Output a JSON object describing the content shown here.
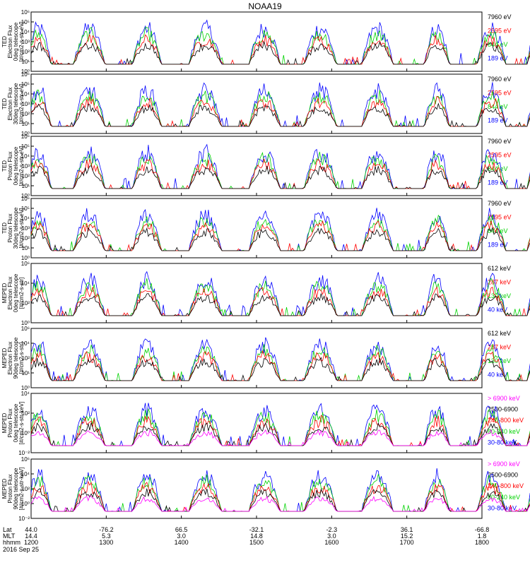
{
  "chart_data": {
    "type": "line",
    "title": "NOAA19",
    "date_label": "2016 Sep 25",
    "colors": {
      "black": "#000000",
      "red": "#ff0000",
      "green": "#00d200",
      "blue": "#0000ff",
      "magenta": "#ff00ff"
    },
    "xaxis": {
      "row_labels": [
        "Lat",
        "MLT",
        "hhmm"
      ],
      "ticks": [
        {
          "hhmm": "1200",
          "lat": "44.0",
          "mlt": "14.4"
        },
        {
          "hhmm": "1300",
          "lat": "-76.2",
          "mlt": "5.3"
        },
        {
          "hhmm": "1400",
          "lat": "66.5",
          "mlt": "3.0"
        },
        {
          "hhmm": "1500",
          "lat": "-32.1",
          "mlt": "14.8"
        },
        {
          "hhmm": "1600",
          "lat": "-2.3",
          "mlt": "3.0"
        },
        {
          "hhmm": "1700",
          "lat": "36.1",
          "mlt": "15.2"
        },
        {
          "hhmm": "1800",
          "lat": "-66.8",
          "mlt": "1.8"
        }
      ]
    },
    "panels": [
      {
        "ylabel_lines": [
          "TED",
          "Electron Flux",
          "0deg telescope",
          "[#/cm2-s-str-eV]"
        ],
        "yticks": [
          "10⁰",
          "10¹",
          "10²",
          "10³",
          "10⁴",
          "10⁵",
          "10⁶"
        ],
        "ylim_log10": [
          0,
          6
        ],
        "legend": [
          {
            "name": "7960 eV",
            "color": "black"
          },
          {
            "name": "2595 eV",
            "color": "red"
          },
          {
            "name": "844 eV",
            "color": "green"
          },
          {
            "name": "189 eV",
            "color": "blue"
          }
        ]
      },
      {
        "ylabel_lines": [
          "TED",
          "Electron Flux",
          "30deg telescope",
          "[#/cm2-s-str-eV]"
        ],
        "yticks": [
          "10⁰",
          "10¹",
          "10²",
          "10³",
          "10⁴",
          "10⁵",
          "10⁶"
        ],
        "ylim_log10": [
          0,
          6
        ],
        "legend": [
          {
            "name": "7960 eV",
            "color": "black"
          },
          {
            "name": "2595 eV",
            "color": "red"
          },
          {
            "name": "844 eV",
            "color": "green"
          },
          {
            "name": "189 eV",
            "color": "blue"
          }
        ]
      },
      {
        "ylabel_lines": [
          "TED",
          "Proton Flux",
          "0deg telescope",
          "[#/cm2-s-str-eV]"
        ],
        "yticks": [
          "10⁰",
          "10¹",
          "10²",
          "10³",
          "10⁴",
          "10⁵",
          "10⁶"
        ],
        "ylim_log10": [
          0,
          6
        ],
        "legend": [
          {
            "name": "7960 eV",
            "color": "black"
          },
          {
            "name": "2595 eV",
            "color": "red"
          },
          {
            "name": "844 eV",
            "color": "green"
          },
          {
            "name": "189 eV",
            "color": "blue"
          }
        ]
      },
      {
        "ylabel_lines": [
          "TED",
          "Proton Flux",
          "30deg telescope",
          "[#/cm2-s-str-eV]"
        ],
        "yticks": [
          "10⁰",
          "10¹",
          "10²",
          "10³",
          "10⁴",
          "10⁵",
          "10⁶"
        ],
        "ylim_log10": [
          0,
          6
        ],
        "legend": [
          {
            "name": "7960 eV",
            "color": "black"
          },
          {
            "name": "2595 eV",
            "color": "red"
          },
          {
            "name": "844 eV",
            "color": "green"
          },
          {
            "name": "189 eV",
            "color": "blue"
          }
        ]
      },
      {
        "ylabel_lines": [
          "MEPED",
          "Electron Flux",
          "0deg telescope",
          "[#/cm2-s-str]"
        ],
        "yticks": [
          "10⁰",
          "10²",
          "10⁴",
          "10⁶"
        ],
        "ylim_log10": [
          0,
          6
        ],
        "legend": [
          {
            "name": "612 keV",
            "color": "black"
          },
          {
            "name": "287 keV",
            "color": "red"
          },
          {
            "name": "130 keV",
            "color": "green"
          },
          {
            "name": "40 keV",
            "color": "blue"
          }
        ]
      },
      {
        "ylabel_lines": [
          "MEPED",
          "Electron Flux",
          "90deg telescope",
          "[#/cm2-s-str]"
        ],
        "yticks": [
          "10⁰",
          "10¹",
          "10²",
          "10⁴",
          "10⁶"
        ],
        "ylim_log10": [
          0,
          6
        ],
        "legend": [
          {
            "name": "612 keV",
            "color": "black"
          },
          {
            "name": "287 keV",
            "color": "red"
          },
          {
            "name": "130 keV",
            "color": "green"
          },
          {
            "name": "40 keV",
            "color": "blue"
          }
        ]
      },
      {
        "ylabel_lines": [
          "MEPED",
          "Proton Flux",
          "0deg telescope",
          "[#/cm2-s-str-keV]"
        ],
        "yticks": [
          "10⁻²",
          "10⁰",
          "10²",
          "10⁴"
        ],
        "ylim_log10": [
          -2.6,
          5
        ],
        "legend": [
          {
            "name": "> 6900 keV",
            "color": "magenta"
          },
          {
            "name": "2500-6900",
            "color": "black"
          },
          {
            "name": "240-800 keV",
            "color": "red"
          },
          {
            "name": "80-240 keV",
            "color": "green"
          },
          {
            "name": "30-80 keV",
            "color": "blue"
          }
        ]
      },
      {
        "ylabel_lines": [
          "MEPED",
          "Proton Flux",
          "90deg telescope",
          "[#/cm2-s-str-keV]"
        ],
        "yticks": [
          "10⁻²",
          "10⁰",
          "10²",
          "10⁴",
          "10⁶"
        ],
        "ylim_log10": [
          -2.6,
          6
        ],
        "legend": [
          {
            "name": "> 6900 keV",
            "color": "magenta"
          },
          {
            "name": "2500-6900",
            "color": "black"
          },
          {
            "name": "240-800 keV",
            "color": "red"
          },
          {
            "name": "80-240 keV",
            "color": "green"
          },
          {
            "name": "30-80 keV",
            "color": "blue"
          }
        ]
      }
    ],
    "series_profile": {
      "comment_free_note": "",
      "x": [
        1200,
        1205,
        1210,
        1215,
        1220,
        1225,
        1230,
        1235,
        1240,
        1245,
        1250,
        1255,
        1300,
        1305,
        1310,
        1315,
        1320,
        1325,
        1330,
        1335,
        1340,
        1345,
        1350,
        1355,
        1400,
        1405,
        1410,
        1415,
        1420,
        1425,
        1430,
        1435,
        1440,
        1445,
        1450,
        1455,
        1500,
        1505,
        1510,
        1515,
        1520,
        1525,
        1530,
        1535,
        1540,
        1545,
        1550,
        1555,
        1600,
        1605,
        1610,
        1615,
        1620,
        1625,
        1630,
        1635,
        1640,
        1645,
        1650,
        1655,
        1700,
        1705,
        1710,
        1715,
        1720,
        1725,
        1730,
        1735,
        1740,
        1745,
        1750,
        1755,
        1800
      ]
    }
  }
}
